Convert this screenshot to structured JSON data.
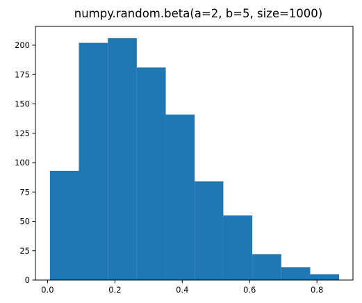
{
  "chart_data": {
    "type": "bar",
    "title": "numpy.random.beta(a=2, b=5, size=1000)",
    "xlabel": "",
    "ylabel": "",
    "bar_color": "#1f77b4",
    "xlim": [
      -0.036,
      0.907
    ],
    "ylim": [
      0,
      216
    ],
    "xticks": [
      0.0,
      0.2,
      0.4,
      0.6,
      0.8
    ],
    "xtick_labels": [
      "0.0",
      "0.2",
      "0.4",
      "0.6",
      "0.8"
    ],
    "yticks": [
      0,
      25,
      50,
      75,
      100,
      125,
      150,
      175,
      200
    ],
    "ytick_labels": [
      "0",
      "25",
      "50",
      "75",
      "100",
      "125",
      "150",
      "175",
      "200"
    ],
    "bin_edges": [
      0.007,
      0.093,
      0.179,
      0.265,
      0.351,
      0.437,
      0.522,
      0.608,
      0.694,
      0.78,
      0.866
    ],
    "values": [
      93,
      202,
      206,
      181,
      141,
      84,
      55,
      22,
      11,
      5
    ],
    "grid": false,
    "legend": "none"
  }
}
